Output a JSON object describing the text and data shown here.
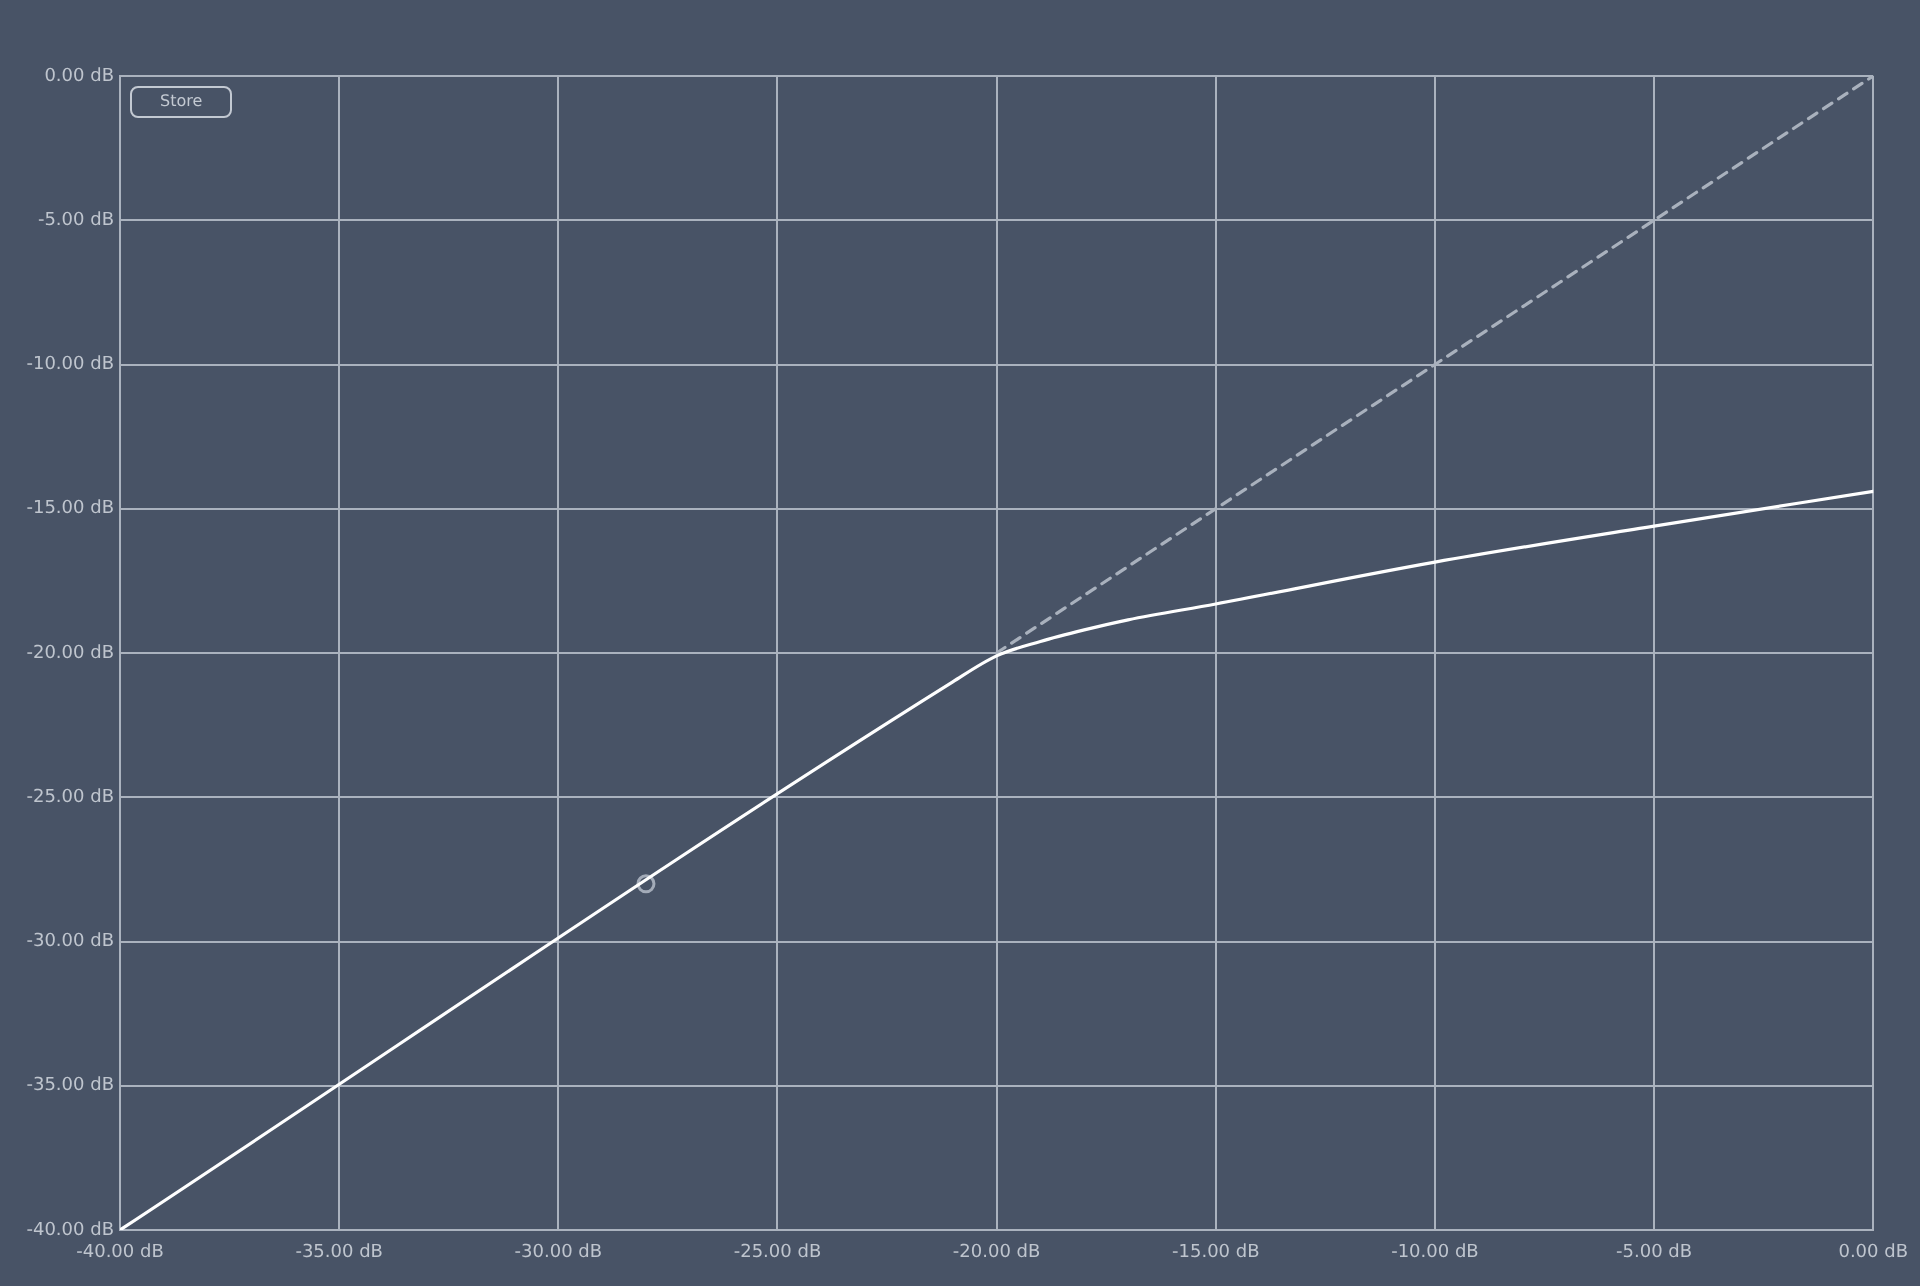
{
  "chart_data": {
    "type": "line",
    "series": [
      {
        "color": "#ffffff",
        "x": [
          -40,
          -21,
          -20,
          -19,
          -18,
          -17,
          -15,
          -10,
          -5,
          0
        ],
        "values": [
          -40,
          -21,
          -20.1,
          -19.6,
          -19.2,
          -18.85,
          -18.3,
          -16.85,
          -15.6,
          -14.4
        ],
        "line_style": "solid",
        "marker": "none"
      },
      {
        "color": "#a9b1bd",
        "x": [
          -20,
          0
        ],
        "values": [
          -20,
          0
        ],
        "line_style": "dashed",
        "marker": "none"
      },
      {
        "type": "scatter",
        "color": "#a3abb8",
        "x": [
          -28
        ],
        "values": [
          -28
        ],
        "marker": "circle"
      }
    ],
    "xlim": [
      -40,
      0
    ],
    "ylim": [
      -40,
      0
    ],
    "xticks": [
      {
        "value": -40,
        "label": "-40.00 dB"
      },
      {
        "value": -35,
        "label": "-35.00 dB"
      },
      {
        "value": -30,
        "label": "-30.00 dB"
      },
      {
        "value": -25,
        "label": "-25.00 dB"
      },
      {
        "value": -20,
        "label": "-20.00 dB"
      },
      {
        "value": -15,
        "label": "-15.00 dB"
      },
      {
        "value": -10,
        "label": "-10.00 dB"
      },
      {
        "value": -5,
        "label": "-5.00 dB"
      },
      {
        "value": 0,
        "label": "0.00 dB"
      }
    ],
    "yticks": [
      {
        "value": -40,
        "label": "-40.00 dB"
      },
      {
        "value": -35,
        "label": "-35.00 dB"
      },
      {
        "value": -30,
        "label": "-30.00 dB"
      },
      {
        "value": -25,
        "label": "-25.00 dB"
      },
      {
        "value": -20,
        "label": "-20.00 dB"
      },
      {
        "value": -15,
        "label": "-15.00 dB"
      },
      {
        "value": -10,
        "label": "-10.00 dB"
      },
      {
        "value": -5,
        "label": "-5.00 dB"
      },
      {
        "value": 0,
        "label": "0.00 dB"
      }
    ],
    "grid": true,
    "legend": false,
    "annotations": [
      "Store"
    ]
  }
}
